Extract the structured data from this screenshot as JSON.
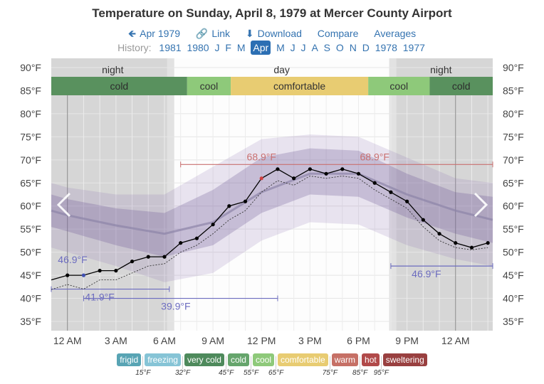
{
  "title": "Temperature on Sunday, April 8, 1979 at Mercer County Airport",
  "toolbar": {
    "prev_label": "Apr 1979",
    "link_label": "Link",
    "download_label": "Download",
    "compare_label": "Compare",
    "averages_label": "Averages"
  },
  "history": {
    "label": "History:",
    "items": [
      "1981",
      "1980",
      "J",
      "F",
      "M",
      "Apr",
      "M",
      "J",
      "J",
      "A",
      "S",
      "O",
      "N",
      "D",
      "1978",
      "1977"
    ],
    "selected_index": 5
  },
  "colors": {
    "frigid": "#58a4b4",
    "freezing": "#86c4d6",
    "very_cold": "#4e8a5c",
    "cold": "#66a56c",
    "cool": "#8ec97a",
    "comfortable": "#e8cc72",
    "warm": "#c67066",
    "hot": "#b14a4a",
    "sweltering": "#994040",
    "observed_line": "#000000",
    "max_annotation": "#c97070",
    "min_annotation": "#6c6cbf"
  },
  "legend": {
    "items": [
      "frigid",
      "freezing",
      "very cold",
      "cold",
      "cool",
      "comfortable",
      "warm",
      "hot",
      "sweltering"
    ],
    "thresholds": [
      "15°F",
      "32°F",
      "45°F",
      "55°F",
      "65°F",
      "75°F",
      "85°F",
      "95°F"
    ]
  },
  "chart_data": {
    "type": "line",
    "xlabel": "",
    "ylabel": "",
    "ylim": [
      33,
      92
    ],
    "xlim": [
      -1,
      26.3
    ],
    "x_ticks": [
      0,
      3,
      6,
      9,
      12,
      15,
      18,
      21,
      24
    ],
    "x_tick_labels": [
      "12 AM",
      "3 AM",
      "6 AM",
      "9 AM",
      "12 PM",
      "3 PM",
      "6 PM",
      "9 PM",
      "12 AM"
    ],
    "y_ticks": [
      35,
      40,
      45,
      50,
      55,
      60,
      65,
      70,
      75,
      80,
      85,
      90
    ],
    "y_tick_labels": [
      "35°F",
      "40°F",
      "45°F",
      "50°F",
      "55°F",
      "60°F",
      "65°F",
      "70°F",
      "75°F",
      "80°F",
      "85°F",
      "90°F"
    ],
    "daylight": {
      "labels": [
        "night",
        "day",
        "night"
      ],
      "sunrise": 6.6,
      "sunset": 19.9
    },
    "comfort_bands": [
      {
        "label": "cold",
        "from": -1,
        "to": 7.4,
        "color": "cold"
      },
      {
        "label": "cool",
        "from": 7.4,
        "to": 10.1,
        "color": "cool"
      },
      {
        "label": "comfortable",
        "from": 10.1,
        "to": 18.6,
        "color": "comfortable"
      },
      {
        "label": "cool",
        "from": 18.6,
        "to": 22.4,
        "color": "cool"
      },
      {
        "label": "cold",
        "from": 22.4,
        "to": 26.3,
        "color": "cold"
      }
    ],
    "observed": {
      "name": "Temperature",
      "x": [
        -1,
        0,
        1,
        2,
        3,
        4,
        5,
        6,
        7,
        8,
        9,
        10,
        11,
        12,
        13,
        14,
        15,
        16,
        17,
        18,
        19,
        20,
        21,
        22,
        23,
        24,
        25,
        26
      ],
      "y": [
        44,
        45,
        45,
        46,
        46,
        48,
        49,
        49,
        52,
        53,
        56,
        60,
        61,
        66,
        68,
        66,
        68,
        67,
        68,
        67,
        65,
        63,
        61,
        57,
        54,
        52,
        51,
        52
      ]
    },
    "dew_point": {
      "name": "Dew point",
      "x": [
        -1,
        0,
        1,
        2,
        3,
        4,
        5,
        6,
        7,
        8,
        9,
        10,
        11,
        12,
        13,
        14,
        15,
        16,
        17,
        18,
        19,
        20,
        21,
        22,
        23,
        24,
        25,
        26
      ],
      "y": [
        41.9,
        43,
        42,
        44,
        44,
        45.5,
        47,
        47.5,
        50,
        51.5,
        54,
        57,
        59,
        63,
        65.5,
        64.5,
        66.5,
        66,
        66.5,
        66,
        63.5,
        61.5,
        59.5,
        55.5,
        52.5,
        51,
        50.5,
        51
      ]
    },
    "normal": {
      "x": [
        -1,
        0,
        3,
        6,
        9,
        12,
        15,
        18,
        21,
        24,
        26.3
      ],
      "mean": [
        59,
        58,
        55.8,
        54,
        56.5,
        63,
        67,
        67,
        62.5,
        59,
        57
      ],
      "p25": [
        55.5,
        54.5,
        51.5,
        49,
        51.5,
        58.5,
        62.5,
        62,
        57.5,
        54,
        52
      ],
      "p75": [
        62.5,
        61.5,
        59.5,
        58.5,
        63.5,
        70.5,
        72.5,
        72,
        67,
        63,
        62
      ],
      "p10": [
        51,
        50,
        47,
        43.5,
        45.5,
        52.5,
        56.5,
        56,
        51.5,
        48.5,
        47
      ],
      "p90": [
        65,
        64,
        62.5,
        62.5,
        68.5,
        74.5,
        75.5,
        75,
        70.5,
        66,
        65
      ]
    },
    "annotations": [
      {
        "label": "68.9°F",
        "type": "max",
        "x_from": 7,
        "x_to": 26.3,
        "y": 69,
        "label_x": [
          12,
          19
        ]
      },
      {
        "label": "46.9°F",
        "type": "min",
        "x_from": 20,
        "x_to": 26.3,
        "y": 47,
        "label_x": [
          -1,
          22.2
        ]
      },
      {
        "label": "41.9°F",
        "type": "min",
        "x_from": -1,
        "x_to": 6.3,
        "y": 42,
        "label_x": [
          2
        ]
      },
      {
        "label": "39.9°F",
        "type": "min",
        "x_from": 1,
        "x_to": 13,
        "y": 40,
        "label_x": [
          6.7
        ]
      }
    ]
  }
}
